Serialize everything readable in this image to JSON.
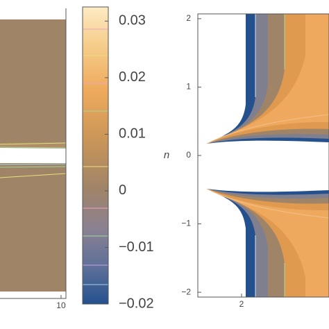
{
  "chart_data": [
    {
      "type": "contour",
      "xlim": [
        0,
        10.8
      ],
      "xticks": [
        10
      ]
    },
    {
      "type": "colorbar",
      "ylim": [
        -0.02,
        0.0325
      ],
      "yticks": [
        0.03,
        0.02,
        0.01,
        0,
        {
          "value": -0.01,
          "label": "−0.01"
        },
        {
          "value": -0.02,
          "label": "−0.02"
        }
      ]
    },
    {
      "type": "contour",
      "ylabel": "n",
      "xlim": [
        1.5,
        3
      ],
      "ylim": [
        -2.07,
        2.07
      ],
      "xticks": [
        2
      ],
      "yticks": [
        2,
        1,
        0,
        {
          "value": -1,
          "label": "−1"
        },
        {
          "value": -2,
          "label": "−2"
        }
      ]
    }
  ]
}
